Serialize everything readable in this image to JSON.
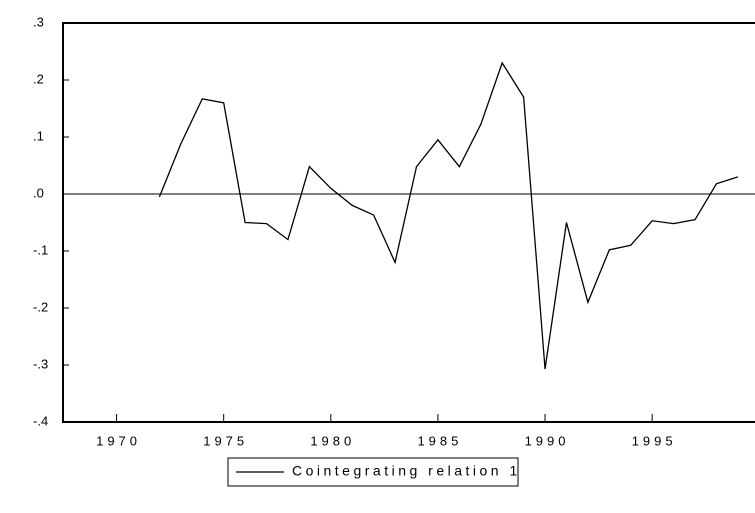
{
  "chart_data": {
    "type": "line",
    "x": [
      1972,
      1973,
      1974,
      1975,
      1976,
      1977,
      1978,
      1979,
      1980,
      1981,
      1982,
      1983,
      1984,
      1985,
      1986,
      1987,
      1988,
      1989,
      1990,
      1991,
      1992,
      1993,
      1994,
      1995,
      1996,
      1997,
      1998,
      1999
    ],
    "series": [
      {
        "name": "Cointegrating relation 1",
        "color": "#000000",
        "values": [
          -0.005,
          0.088,
          0.167,
          0.16,
          -0.05,
          -0.052,
          -0.08,
          0.048,
          0.01,
          -0.02,
          -0.037,
          -0.12,
          0.048,
          0.095,
          0.048,
          0.122,
          0.23,
          0.17,
          -0.307,
          -0.05,
          -0.19,
          -0.098,
          -0.09,
          -0.047,
          -0.052,
          -0.045,
          0.018,
          0.03
        ]
      }
    ],
    "xlim": [
      1967.5,
      1999.8
    ],
    "xticks": [
      1970,
      1975,
      1980,
      1985,
      1990,
      1995
    ],
    "ylim": [
      -0.4,
      0.3
    ],
    "yticks": [
      {
        "value": 0.3,
        "label": ".3"
      },
      {
        "value": 0.2,
        "label": ".2"
      },
      {
        "value": 0.1,
        "label": ".1"
      },
      {
        "value": 0,
        "label": ".0"
      },
      {
        "value": -0.1,
        "label": "-.1"
      },
      {
        "value": -0.2,
        "label": "-.2"
      },
      {
        "value": -0.3,
        "label": "-.3"
      },
      {
        "value": -0.4,
        "label": "-.4"
      }
    ],
    "zero_line": true,
    "legend": "bottom"
  }
}
